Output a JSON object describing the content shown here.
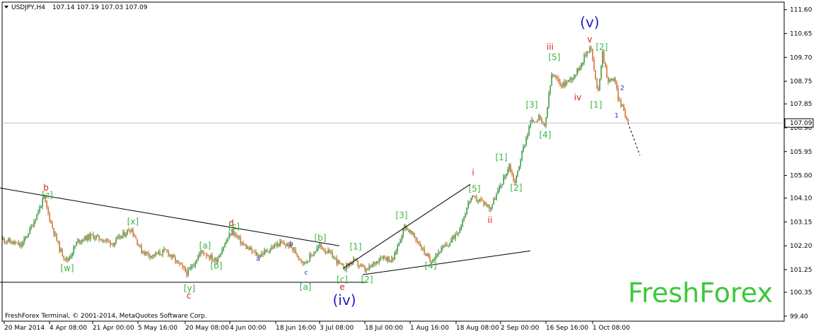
{
  "header": {
    "symbol": "USDJPY,H4",
    "ohlc": "107.14 107.19 107.03 107.09"
  },
  "footer": {
    "copyright": "FreshForex Terminal, © 2001-2014, MetaQuotes Software Corp."
  },
  "watermark": "FreshForex",
  "colors": {
    "background": "#ffffff",
    "bull_candle": "#2e8b2e",
    "bear_candle": "#c8641e",
    "grid": "#c0c0c0",
    "trendline": "#000000",
    "label_green": "#3cb43c",
    "label_red": "#dc1e1e",
    "label_blue": "#1e1ec8",
    "watermark": "#3cc83c"
  },
  "chart_data": {
    "type": "candlestick",
    "symbol": "USDJPY",
    "timeframe": "H4",
    "current_price": "107.09",
    "ylim": [
      99.2,
      111.9
    ],
    "y_ticks": [
      "111.60",
      "110.65",
      "109.70",
      "108.75",
      "107.85",
      "106.90",
      "105.95",
      "105.00",
      "104.10",
      "103.15",
      "102.20",
      "101.25",
      "100.35",
      "99.40"
    ],
    "x_ticks": [
      "20 Mar 2014",
      "4 Apr 08:00",
      "21 Apr 00:00",
      "5 May 16:00",
      "20 May 08:00",
      "4 Jun 00:00",
      "18 Jun 16:00",
      "3 Jul 08:00",
      "18 Jul 00:00",
      "1 Aug 16:00",
      "18 Aug 08:00",
      "2 Sep 00:00",
      "16 Sep 16:00",
      "1 Oct 08:00"
    ],
    "price_path": [
      [
        0,
        102.5
      ],
      [
        30,
        102.2
      ],
      [
        45,
        103.0
      ],
      [
        62,
        104.1
      ],
      [
        72,
        103.1
      ],
      [
        85,
        102.0
      ],
      [
        95,
        101.6
      ],
      [
        110,
        102.4
      ],
      [
        130,
        102.6
      ],
      [
        160,
        102.3
      ],
      [
        185,
        102.9
      ],
      [
        200,
        102.0
      ],
      [
        215,
        101.8
      ],
      [
        235,
        102.0
      ],
      [
        255,
        101.4
      ],
      [
        265,
        101.1
      ],
      [
        285,
        102.0
      ],
      [
        305,
        101.6
      ],
      [
        328,
        102.8
      ],
      [
        345,
        102.2
      ],
      [
        365,
        101.8
      ],
      [
        395,
        102.3
      ],
      [
        410,
        102.2
      ],
      [
        430,
        101.5
      ],
      [
        452,
        102.2
      ],
      [
        470,
        101.8
      ],
      [
        485,
        101.3
      ],
      [
        500,
        101.6
      ],
      [
        518,
        101.2
      ],
      [
        540,
        101.8
      ],
      [
        555,
        101.6
      ],
      [
        572,
        103.0
      ],
      [
        590,
        102.4
      ],
      [
        608,
        101.6
      ],
      [
        618,
        101.9
      ],
      [
        635,
        102.3
      ],
      [
        650,
        102.9
      ],
      [
        665,
        104.1
      ],
      [
        680,
        104.0
      ],
      [
        693,
        103.7
      ],
      [
        708,
        104.6
      ],
      [
        720,
        105.4
      ],
      [
        728,
        104.7
      ],
      [
        738,
        105.9
      ],
      [
        750,
        107.1
      ],
      [
        762,
        107.3
      ],
      [
        770,
        106.9
      ],
      [
        780,
        109.0
      ],
      [
        795,
        108.6
      ],
      [
        805,
        108.8
      ],
      [
        815,
        109.1
      ],
      [
        835,
        110.2
      ],
      [
        845,
        108.2
      ],
      [
        852,
        109.9
      ],
      [
        860,
        108.7
      ],
      [
        868,
        108.9
      ],
      [
        875,
        108.0
      ],
      [
        882,
        107.6
      ],
      [
        888,
        107.1
      ]
    ],
    "projection": [
      [
        888,
        107.1
      ],
      [
        905,
        105.8
      ]
    ],
    "trendlines": [
      [
        [
          0,
          104.5
        ],
        [
          480,
          102.2
        ]
      ],
      [
        [
          0,
          100.75
        ],
        [
          520,
          100.75
        ]
      ],
      [
        [
          485,
          101.3
        ],
        [
          665,
          104.65
        ]
      ],
      [
        [
          513,
          101.05
        ],
        [
          750,
          102.0
        ]
      ]
    ],
    "wave_labels": [
      {
        "text": "b",
        "x": 65,
        "p": 104.4,
        "color": "red",
        "size": "small"
      },
      {
        "text": "[z]",
        "x": 67,
        "p": 104.1,
        "color": "green",
        "size": "small"
      },
      {
        "text": "[w]",
        "x": 95,
        "p": 101.2,
        "color": "green",
        "size": "small"
      },
      {
        "text": "[x]",
        "x": 188,
        "p": 103.05,
        "color": "green",
        "size": "small"
      },
      {
        "text": "[y]",
        "x": 268,
        "p": 100.4,
        "color": "green",
        "size": "small"
      },
      {
        "text": "c",
        "x": 267,
        "p": 100.1,
        "color": "red",
        "size": "small"
      },
      {
        "text": "[a]",
        "x": 290,
        "p": 102.1,
        "color": "green",
        "size": "small"
      },
      {
        "text": "[b]",
        "x": 306,
        "p": 101.3,
        "color": "green",
        "size": "small"
      },
      {
        "text": "d",
        "x": 327,
        "p": 103.0,
        "color": "red",
        "size": "small"
      },
      {
        "text": "[c]",
        "x": 331,
        "p": 102.85,
        "color": "green",
        "size": "small"
      },
      {
        "text": "a",
        "x": 365,
        "p": 101.6,
        "color": "blue",
        "size": "tiny"
      },
      {
        "text": "b",
        "x": 412,
        "p": 102.2,
        "color": "blue",
        "size": "tiny"
      },
      {
        "text": "c",
        "x": 433,
        "p": 101.05,
        "color": "blue",
        "size": "tiny"
      },
      {
        "text": "[a]",
        "x": 432,
        "p": 100.45,
        "color": "green",
        "size": "small"
      },
      {
        "text": "[b]",
        "x": 453,
        "p": 102.4,
        "color": "green",
        "size": "small"
      },
      {
        "text": "[c]",
        "x": 484,
        "p": 100.75,
        "color": "green",
        "size": "small"
      },
      {
        "text": "e",
        "x": 484,
        "p": 100.45,
        "color": "red",
        "size": "small"
      },
      {
        "text": "(iv)",
        "x": 487,
        "p": 99.85,
        "color": "blue",
        "size": "large"
      },
      {
        "text": "[1]",
        "x": 503,
        "p": 102.05,
        "color": "green",
        "size": "small"
      },
      {
        "text": "[2]",
        "x": 519,
        "p": 100.75,
        "color": "green",
        "size": "small"
      },
      {
        "text": "[3]",
        "x": 568,
        "p": 103.3,
        "color": "green",
        "size": "small"
      },
      {
        "text": "[4]",
        "x": 609,
        "p": 101.3,
        "color": "green",
        "size": "small"
      },
      {
        "text": "i",
        "x": 669,
        "p": 105.0,
        "color": "red",
        "size": "small"
      },
      {
        "text": "[5]",
        "x": 671,
        "p": 104.35,
        "color": "green",
        "size": "small"
      },
      {
        "text": "ii",
        "x": 693,
        "p": 103.1,
        "color": "red",
        "size": "small"
      },
      {
        "text": "[1]",
        "x": 709,
        "p": 105.6,
        "color": "green",
        "size": "small"
      },
      {
        "text": "[2]",
        "x": 730,
        "p": 104.4,
        "color": "green",
        "size": "small"
      },
      {
        "text": "[3]",
        "x": 752,
        "p": 107.7,
        "color": "green",
        "size": "small"
      },
      {
        "text": "[4]",
        "x": 771,
        "p": 106.5,
        "color": "green",
        "size": "small"
      },
      {
        "text": "iii",
        "x": 778,
        "p": 110.0,
        "color": "red",
        "size": "small"
      },
      {
        "text": "[5]",
        "x": 784,
        "p": 109.6,
        "color": "green",
        "size": "small"
      },
      {
        "text": "iv",
        "x": 817,
        "p": 108.0,
        "color": "red",
        "size": "small"
      },
      {
        "text": "(v)",
        "x": 834,
        "p": 110.9,
        "color": "blue",
        "size": "large"
      },
      {
        "text": "v",
        "x": 834,
        "p": 110.3,
        "color": "red",
        "size": "small"
      },
      {
        "text": "[2]",
        "x": 851,
        "p": 110.0,
        "color": "green",
        "size": "small"
      },
      {
        "text": "[1]",
        "x": 843,
        "p": 107.7,
        "color": "green",
        "size": "small"
      },
      {
        "text": "2",
        "x": 880,
        "p": 108.4,
        "color": "blue",
        "size": "tiny"
      },
      {
        "text": "1",
        "x": 872,
        "p": 107.3,
        "color": "blue",
        "size": "tiny"
      }
    ]
  }
}
